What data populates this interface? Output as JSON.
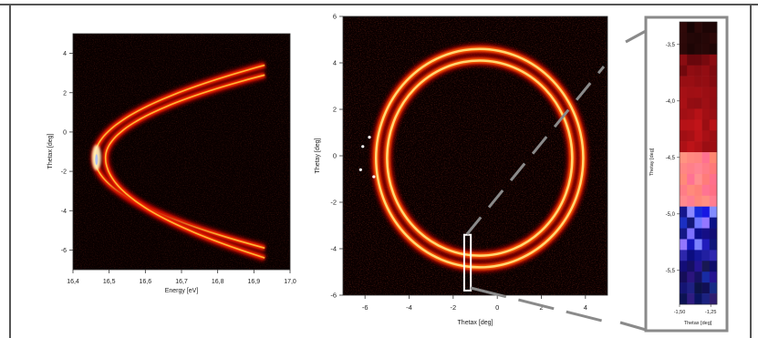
{
  "chart_data": [
    {
      "type": "heatmap",
      "description_of_marks": "two bright parabola-like bands opening to the right",
      "xlabel": "Energy [eV]",
      "ylabel": "Thetax [deg]",
      "xlim": [
        16.4,
        17.0
      ],
      "ylim": [
        -7,
        5
      ],
      "xticks": [
        16.4,
        16.5,
        16.6,
        16.7,
        16.8,
        16.9,
        17.0
      ],
      "xtick_labels": [
        "16,4",
        "16,5",
        "16,6",
        "16,7",
        "16,8",
        "16,9",
        "17,0"
      ],
      "yticks": [
        -6,
        -4,
        -2,
        0,
        2,
        4
      ],
      "ytick_labels": [
        "-6",
        "-4",
        "-2",
        "0",
        "2",
        "4"
      ],
      "bands": [
        {
          "vertex_energy": 16.46,
          "vertex_theta": -1.3,
          "upper_end_energy": 16.93,
          "upper_end_theta": 3.4,
          "lower_end_energy": 16.93,
          "lower_end_theta": -5.9
        },
        {
          "vertex_energy": 16.49,
          "vertex_theta": -1.3,
          "upper_end_energy": 16.93,
          "upper_end_theta": 2.9,
          "lower_end_energy": 16.93,
          "lower_end_theta": -6.4
        }
      ],
      "colormap": [
        "#000000",
        "#8b0000",
        "#ff2a00",
        "#ffcc00",
        "#ffffff"
      ]
    },
    {
      "type": "heatmap",
      "xlabel": "Thetax [deg]",
      "ylabel": "Thetay [deg]",
      "xlim": [
        -7,
        5
      ],
      "ylim": [
        -6,
        6
      ],
      "xticks": [
        -6,
        -4,
        -2,
        0,
        2,
        4
      ],
      "xtick_labels": [
        "-6",
        "-4",
        "-2",
        "0",
        "2",
        "4"
      ],
      "yticks": [
        -6,
        -4,
        -2,
        0,
        2,
        4,
        6
      ],
      "ytick_labels": [
        "-6",
        "-4",
        "-2",
        "0",
        "2",
        "4",
        "6"
      ],
      "rings": [
        {
          "center_x": -0.8,
          "center_y": -0.1,
          "radius": 4.7
        },
        {
          "center_x": -0.8,
          "center_y": -0.1,
          "radius": 4.2
        }
      ],
      "highlight_box": {
        "x_min": -1.5,
        "x_max": -1.2,
        "y_min": -5.8,
        "y_max": -3.4
      }
    },
    {
      "type": "heatmap",
      "xlabel": "Thetax [deg]",
      "ylabel": "Thetay [deg]",
      "xlim": [
        -1.5,
        -1.2
      ],
      "ylim": [
        -5.8,
        -3.3
      ],
      "xticks": [
        -1.5,
        -1.25
      ],
      "xtick_labels": [
        "-1,50",
        "-1,25"
      ],
      "yticks": [
        -5.5,
        -5.0,
        -4.5,
        -4.0,
        -3.5
      ],
      "ytick_labels": [
        "-5,5",
        "-5,0",
        "-4,5",
        "-4,0",
        "-3,5"
      ],
      "colormap": [
        "#0000c8",
        "#3030ff",
        "#8080ff",
        "#000000",
        "#800000",
        "#cc2020",
        "#ff8080"
      ]
    }
  ]
}
